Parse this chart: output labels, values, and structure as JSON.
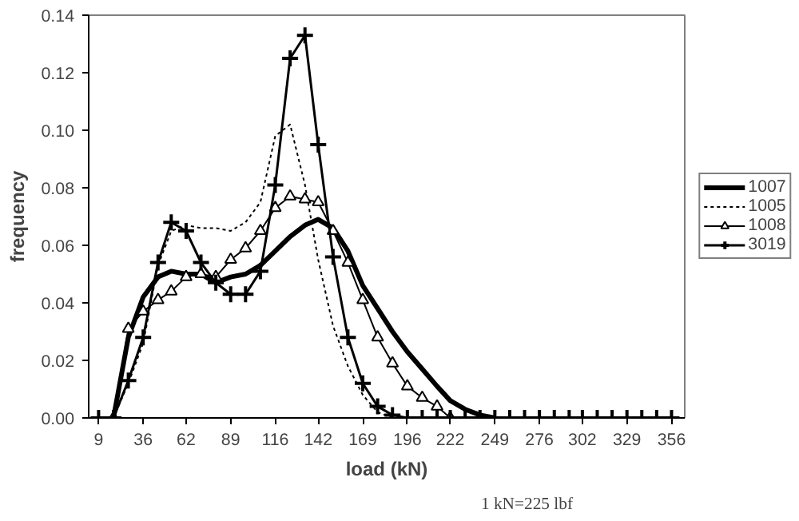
{
  "chart_data": {
    "type": "line",
    "xlabel": "load (kN)",
    "ylabel": "frequency",
    "x": [
      9,
      18,
      27,
      36,
      45,
      53,
      62,
      71,
      80,
      89,
      98,
      107,
      116,
      125,
      134,
      142,
      151,
      160,
      169,
      178,
      187,
      196,
      205,
      214,
      222,
      231,
      240,
      249,
      258,
      267,
      276,
      285,
      294,
      302,
      311,
      320,
      329,
      338,
      347,
      356
    ],
    "xlim": [
      3,
      364
    ],
    "xticks": [
      9,
      36,
      62,
      89,
      116,
      142,
      169,
      196,
      222,
      249,
      276,
      302,
      329,
      356
    ],
    "ylim": [
      0,
      0.14
    ],
    "yticks": [
      {
        "value": 0,
        "label": "0.00"
      },
      {
        "value": 0.02,
        "label": "0.02"
      },
      {
        "value": 0.04,
        "label": "0.04"
      },
      {
        "value": 0.06,
        "label": "0.06"
      },
      {
        "value": 0.08,
        "label": "0.08"
      },
      {
        "value": 0.1,
        "label": "0.10"
      },
      {
        "value": 0.12,
        "label": "0.12"
      },
      {
        "value": 0.14,
        "label": "0.14"
      }
    ],
    "series": [
      {
        "name": "1007",
        "color": "#000000",
        "marker": "none",
        "line_style": "solid",
        "values": [
          null,
          0,
          0.028,
          0.042,
          0.049,
          0.051,
          0.05,
          0.05,
          0.047,
          0.049,
          0.05,
          0.053,
          0.058,
          0.063,
          0.067,
          0.069,
          0.066,
          0.058,
          0.046,
          0.038,
          0.03,
          0.023,
          0.017,
          0.011,
          0.006,
          0.003,
          0.001,
          0,
          null,
          null,
          null,
          null,
          null,
          null,
          null,
          null,
          null,
          null,
          null,
          null
        ]
      },
      {
        "name": "1005",
        "color": "#000000",
        "marker": "none",
        "line_style": "dotted",
        "values": [
          null,
          0,
          0.012,
          0.026,
          0.053,
          0.065,
          0.067,
          0.066,
          0.066,
          0.065,
          0.068,
          0.075,
          0.098,
          0.102,
          0.081,
          0.055,
          0.032,
          0.018,
          0.008,
          0.002,
          0,
          null,
          null,
          null,
          null,
          null,
          null,
          null,
          null,
          null,
          null,
          null,
          null,
          null,
          null,
          null,
          null,
          null,
          null,
          null
        ]
      },
      {
        "name": "1008",
        "color": "#000000",
        "marker": "triangle",
        "line_style": "solid",
        "values": [
          null,
          0,
          0.031,
          0.037,
          0.041,
          0.044,
          0.049,
          0.05,
          0.049,
          0.055,
          0.059,
          0.065,
          0.073,
          0.077,
          0.076,
          0.075,
          0.065,
          0.054,
          0.041,
          0.028,
          0.019,
          0.011,
          0.007,
          0.004,
          0,
          null,
          null,
          null,
          null,
          null,
          null,
          null,
          null,
          null,
          null,
          null,
          null,
          null,
          null,
          null
        ]
      },
      {
        "name": "3019",
        "color": "#000000",
        "marker": "cross",
        "line_style": "solid",
        "values": [
          0,
          0,
          0.013,
          0.028,
          0.054,
          0.068,
          0.065,
          0.054,
          0.047,
          0.043,
          0.043,
          0.051,
          0.081,
          0.125,
          0.133,
          0.095,
          0.056,
          0.028,
          0.012,
          0.004,
          0.001,
          0,
          0,
          0,
          0,
          0,
          0,
          0,
          0,
          0,
          0,
          0,
          0,
          0,
          0,
          0,
          0,
          0,
          0,
          0
        ]
      }
    ],
    "grid": false,
    "legend": "right",
    "annotations": [
      "1 kN=225 lbf"
    ]
  }
}
